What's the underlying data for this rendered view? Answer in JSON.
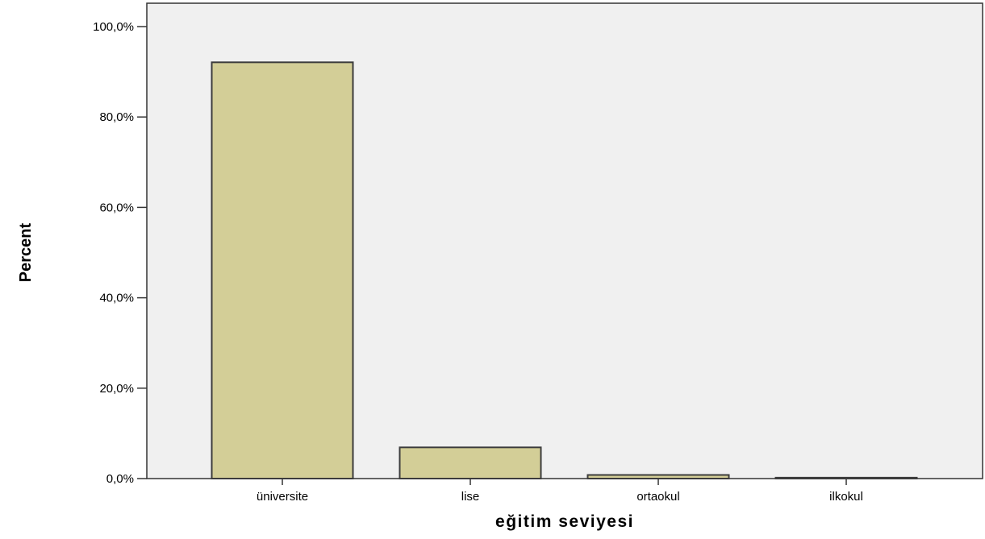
{
  "chart_data": {
    "type": "bar",
    "title": "",
    "xlabel": "eğitim seviyesi",
    "ylabel": "Percent",
    "categories": [
      "üniversite",
      "lise",
      "ortaokul",
      "ilkokul"
    ],
    "values": [
      92.1,
      6.9,
      0.8,
      0.2
    ],
    "ylim": [
      0,
      100
    ],
    "yticks": [
      0,
      20,
      40,
      60,
      80,
      100
    ],
    "ytick_labels": [
      "0,0%",
      "20,0%",
      "40,0%",
      "60,0%",
      "80,0%",
      "100,0%"
    ],
    "grid": false,
    "legend": "none",
    "colors": {
      "bar_fill": "#d3ce97",
      "bar_stroke": "#3c3c3c",
      "plot_background": "#f0f0f0",
      "axis": "#333333"
    }
  }
}
